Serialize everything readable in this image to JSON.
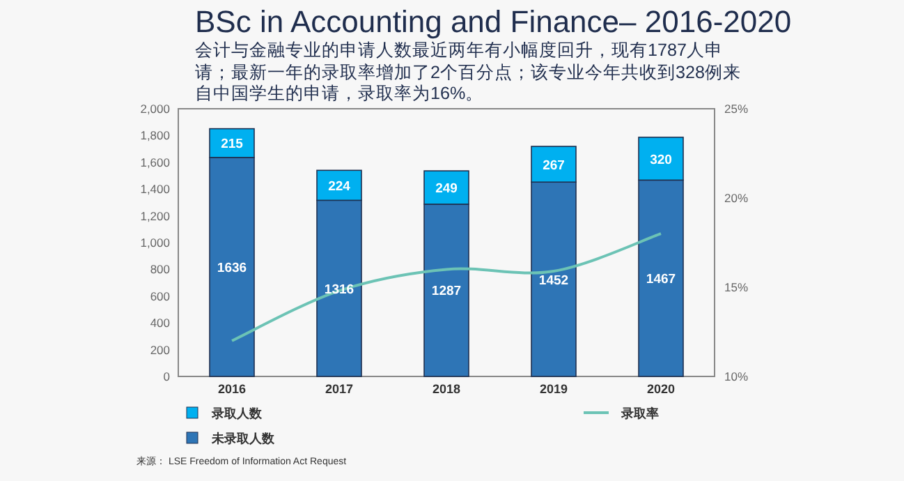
{
  "chart_data": {
    "type": "bar",
    "stacked": true,
    "legend": "bottom",
    "title": "BSc in Accounting and Finance– 2016-2020",
    "subtitle": "会计与金融专业的申请人数最近两年有小幅度回升，现有1787人申请；最新一年的录取率增加了2个百分点；该专业今年共收到328例来自中国学生的申请，录取率为16%。",
    "categories": [
      "2016",
      "2017",
      "2018",
      "2019",
      "2020"
    ],
    "series": [
      {
        "name": "未录取人数",
        "color": "#2e75b6",
        "values": [
          1636,
          1316,
          1287,
          1452,
          1467
        ],
        "value_labels": [
          "1636",
          "1316",
          "1287",
          "1452",
          "1467"
        ]
      },
      {
        "name": "录取人数",
        "color": "#00b0f0",
        "values": [
          215,
          224,
          249,
          267,
          320
        ],
        "value_labels": [
          "215",
          "224",
          "249",
          "267",
          "320"
        ]
      },
      {
        "name": "录取率",
        "type": "line",
        "axis": "y2",
        "color": "#6cc3b5",
        "values": [
          12.0,
          14.8,
          16.0,
          15.9,
          18.0
        ]
      }
    ],
    "ylim": [
      0,
      2000
    ],
    "yticks": [
      0,
      200,
      400,
      600,
      800,
      {
        "value": 1000,
        "label": "1,000"
      },
      {
        "value": 1200,
        "label": "1,200"
      },
      {
        "value": 1400,
        "label": "1,400"
      },
      {
        "value": 1600,
        "label": "1,600"
      },
      {
        "value": 1800,
        "label": "1,800"
      },
      {
        "value": 2000,
        "label": "2,000"
      }
    ],
    "y2lim": [
      10,
      25
    ],
    "y2ticks": [
      {
        "value": 10,
        "label": "10%"
      },
      {
        "value": 15,
        "label": "15%"
      },
      {
        "value": 20,
        "label": "20%"
      },
      {
        "value": 25,
        "label": "25%"
      }
    ],
    "annotations": [
      "来源： LSE Freedom of Information Act Request"
    ]
  }
}
